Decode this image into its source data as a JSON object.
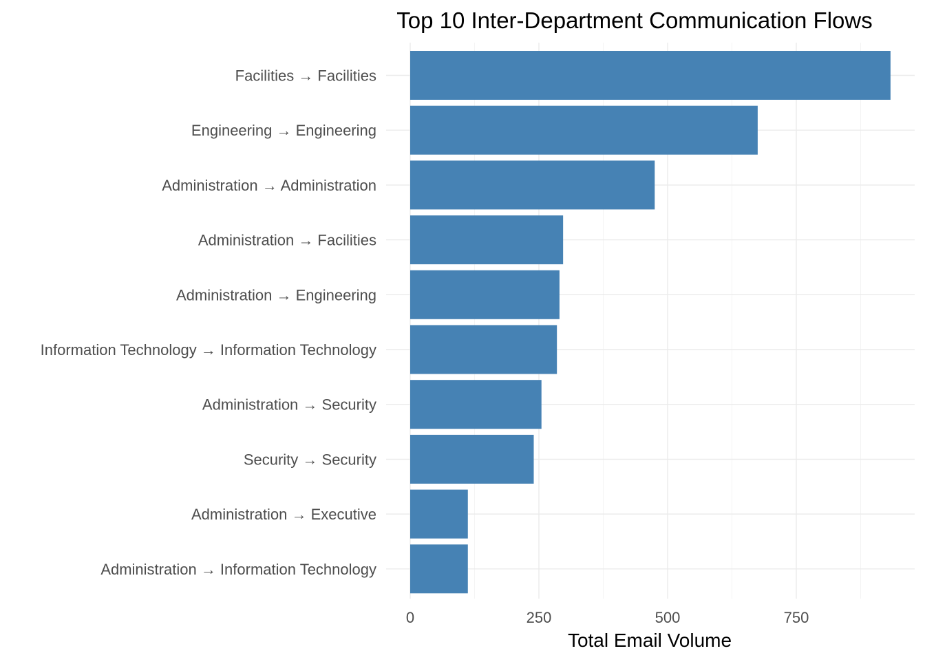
{
  "chart_data": {
    "type": "bar",
    "orientation": "horizontal",
    "title": "Top 10 Inter-Department Communication Flows",
    "xlabel": "Total Email Volume",
    "ylabel": "",
    "categories": [
      "Facilities → Facilities",
      "Engineering → Engineering",
      "Administration → Administration",
      "Administration → Facilities",
      "Administration → Engineering",
      "Information Technology → Information Technology",
      "Administration → Security",
      "Security → Security",
      "Administration → Executive",
      "Administration → Information Technology"
    ],
    "values": [
      933,
      675,
      475,
      297,
      290,
      285,
      255,
      240,
      112,
      112
    ],
    "xlim": [
      0,
      980
    ],
    "xticks": [
      0,
      250,
      500,
      750
    ],
    "xtick_labels": [
      "0",
      "250",
      "500",
      "750"
    ],
    "grid": true,
    "legend": "none",
    "bar_color": "#4682b4"
  }
}
